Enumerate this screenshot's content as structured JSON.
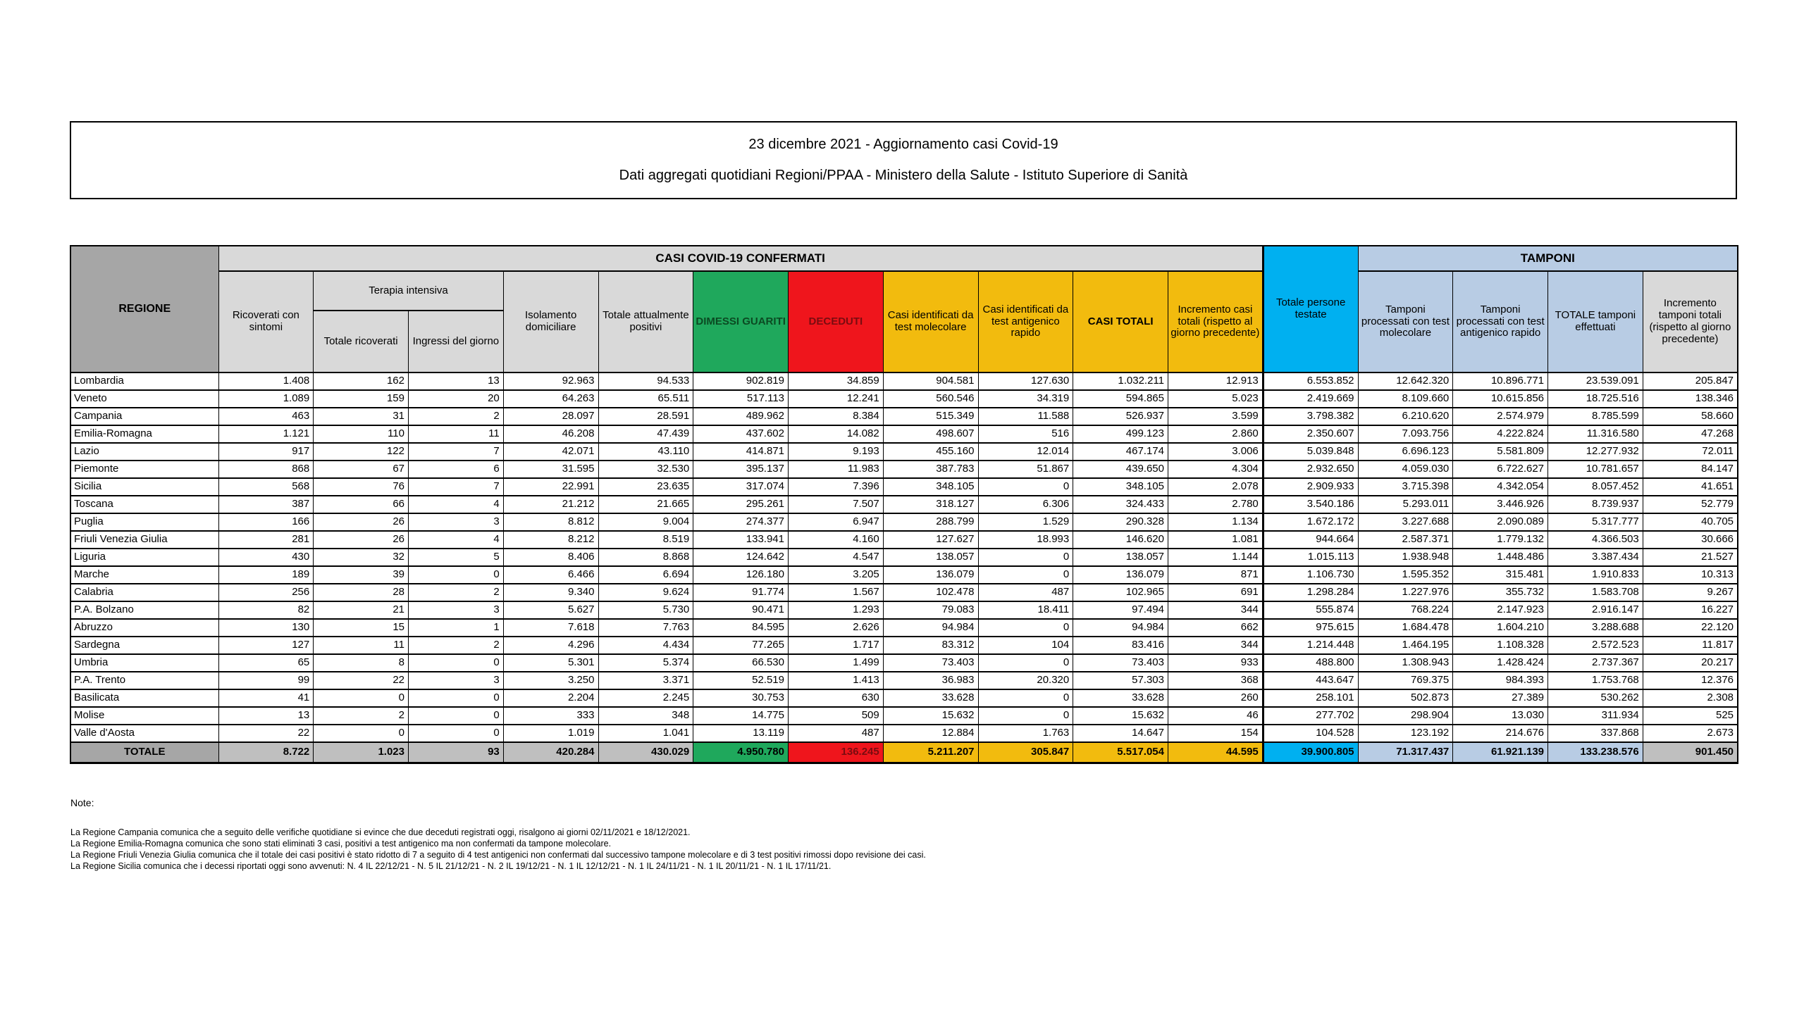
{
  "title": {
    "line1": "23 dicembre 2021 - Aggiornamento casi Covid-19",
    "line2": "Dati aggregati quotidiani Regioni/PPAA - Ministero della Salute - Istituto Superiore di Sanità"
  },
  "colors": {
    "gray-header": "#A6A6A6",
    "gray-light": "#D9D9D9",
    "gray-total": "#BFBFBF",
    "green": "#1FA85C",
    "green-text": "#0B4A22",
    "red": "#EF151C",
    "red-text": "#7A0C10",
    "gold": "#F2BB0E",
    "cyan": "#00B0F0",
    "blue-light": "#B8CCE4"
  },
  "table": {
    "headers": {
      "regione": "REGIONE",
      "casi_confermati": "CASI COVID-19 CONFERMATI",
      "tamponi": "TAMPONI",
      "ricoverati": "Ricoverati con sintomi",
      "terapia_intensiva": "Terapia intensiva",
      "totale_ricoverati": "Totale ricoverati",
      "ingressi": "Ingressi del giorno",
      "isolamento": "Isolamento domiciliare",
      "totale_positivi": "Totale attualmente positivi",
      "dimessi": "DIMESSI GUARITI",
      "deceduti": "DECEDUTI",
      "casi_molecolare": "Casi identificati da test molecolare",
      "casi_antigenico": "Casi identificati da test antigenico rapido",
      "casi_totali": "CASI TOTALI",
      "incremento_casi": "Incremento casi totali (rispetto al giorno precedente)",
      "totale_persone_testate": "Totale persone testate",
      "tamponi_molecolare": "Tamponi processati con test molecolare",
      "tamponi_antigenico": "Tamponi processati con test antigenico rapido",
      "totale_tamponi": "TOTALE tamponi effettuati",
      "incremento_tamponi": "Incremento tamponi totali (rispetto al giorno precedente)"
    },
    "rows": [
      {
        "regione": "Lombardia",
        "values": [
          "1.408",
          "162",
          "13",
          "92.963",
          "94.533",
          "902.819",
          "34.859",
          "904.581",
          "127.630",
          "1.032.211",
          "12.913",
          "6.553.852",
          "12.642.320",
          "10.896.771",
          "23.539.091",
          "205.847"
        ]
      },
      {
        "regione": "Veneto",
        "values": [
          "1.089",
          "159",
          "20",
          "64.263",
          "65.511",
          "517.113",
          "12.241",
          "560.546",
          "34.319",
          "594.865",
          "5.023",
          "2.419.669",
          "8.109.660",
          "10.615.856",
          "18.725.516",
          "138.346"
        ]
      },
      {
        "regione": "Campania",
        "values": [
          "463",
          "31",
          "2",
          "28.097",
          "28.591",
          "489.962",
          "8.384",
          "515.349",
          "11.588",
          "526.937",
          "3.599",
          "3.798.382",
          "6.210.620",
          "2.574.979",
          "8.785.599",
          "58.660"
        ]
      },
      {
        "regione": "Emilia-Romagna",
        "values": [
          "1.121",
          "110",
          "11",
          "46.208",
          "47.439",
          "437.602",
          "14.082",
          "498.607",
          "516",
          "499.123",
          "2.860",
          "2.350.607",
          "7.093.756",
          "4.222.824",
          "11.316.580",
          "47.268"
        ]
      },
      {
        "regione": "Lazio",
        "values": [
          "917",
          "122",
          "7",
          "42.071",
          "43.110",
          "414.871",
          "9.193",
          "455.160",
          "12.014",
          "467.174",
          "3.006",
          "5.039.848",
          "6.696.123",
          "5.581.809",
          "12.277.932",
          "72.011"
        ]
      },
      {
        "regione": "Piemonte",
        "values": [
          "868",
          "67",
          "6",
          "31.595",
          "32.530",
          "395.137",
          "11.983",
          "387.783",
          "51.867",
          "439.650",
          "4.304",
          "2.932.650",
          "4.059.030",
          "6.722.627",
          "10.781.657",
          "84.147"
        ]
      },
      {
        "regione": "Sicilia",
        "values": [
          "568",
          "76",
          "7",
          "22.991",
          "23.635",
          "317.074",
          "7.396",
          "348.105",
          "0",
          "348.105",
          "2.078",
          "2.909.933",
          "3.715.398",
          "4.342.054",
          "8.057.452",
          "41.651"
        ]
      },
      {
        "regione": "Toscana",
        "values": [
          "387",
          "66",
          "4",
          "21.212",
          "21.665",
          "295.261",
          "7.507",
          "318.127",
          "6.306",
          "324.433",
          "2.780",
          "3.540.186",
          "5.293.011",
          "3.446.926",
          "8.739.937",
          "52.779"
        ]
      },
      {
        "regione": "Puglia",
        "values": [
          "166",
          "26",
          "3",
          "8.812",
          "9.004",
          "274.377",
          "6.947",
          "288.799",
          "1.529",
          "290.328",
          "1.134",
          "1.672.172",
          "3.227.688",
          "2.090.089",
          "5.317.777",
          "40.705"
        ]
      },
      {
        "regione": "Friuli Venezia Giulia",
        "values": [
          "281",
          "26",
          "4",
          "8.212",
          "8.519",
          "133.941",
          "4.160",
          "127.627",
          "18.993",
          "146.620",
          "1.081",
          "944.664",
          "2.587.371",
          "1.779.132",
          "4.366.503",
          "30.666"
        ]
      },
      {
        "regione": "Liguria",
        "values": [
          "430",
          "32",
          "5",
          "8.406",
          "8.868",
          "124.642",
          "4.547",
          "138.057",
          "0",
          "138.057",
          "1.144",
          "1.015.113",
          "1.938.948",
          "1.448.486",
          "3.387.434",
          "21.527"
        ]
      },
      {
        "regione": "Marche",
        "values": [
          "189",
          "39",
          "0",
          "6.466",
          "6.694",
          "126.180",
          "3.205",
          "136.079",
          "0",
          "136.079",
          "871",
          "1.106.730",
          "1.595.352",
          "315.481",
          "1.910.833",
          "10.313"
        ]
      },
      {
        "regione": "Calabria",
        "values": [
          "256",
          "28",
          "2",
          "9.340",
          "9.624",
          "91.774",
          "1.567",
          "102.478",
          "487",
          "102.965",
          "691",
          "1.298.284",
          "1.227.976",
          "355.732",
          "1.583.708",
          "9.267"
        ]
      },
      {
        "regione": "P.A. Bolzano",
        "values": [
          "82",
          "21",
          "3",
          "5.627",
          "5.730",
          "90.471",
          "1.293",
          "79.083",
          "18.411",
          "97.494",
          "344",
          "555.874",
          "768.224",
          "2.147.923",
          "2.916.147",
          "16.227"
        ]
      },
      {
        "regione": "Abruzzo",
        "values": [
          "130",
          "15",
          "1",
          "7.618",
          "7.763",
          "84.595",
          "2.626",
          "94.984",
          "0",
          "94.984",
          "662",
          "975.615",
          "1.684.478",
          "1.604.210",
          "3.288.688",
          "22.120"
        ]
      },
      {
        "regione": "Sardegna",
        "values": [
          "127",
          "11",
          "2",
          "4.296",
          "4.434",
          "77.265",
          "1.717",
          "83.312",
          "104",
          "83.416",
          "344",
          "1.214.448",
          "1.464.195",
          "1.108.328",
          "2.572.523",
          "11.817"
        ]
      },
      {
        "regione": "Umbria",
        "values": [
          "65",
          "8",
          "0",
          "5.301",
          "5.374",
          "66.530",
          "1.499",
          "73.403",
          "0",
          "73.403",
          "933",
          "488.800",
          "1.308.943",
          "1.428.424",
          "2.737.367",
          "20.217"
        ]
      },
      {
        "regione": "P.A. Trento",
        "values": [
          "99",
          "22",
          "3",
          "3.250",
          "3.371",
          "52.519",
          "1.413",
          "36.983",
          "20.320",
          "57.303",
          "368",
          "443.647",
          "769.375",
          "984.393",
          "1.753.768",
          "12.376"
        ]
      },
      {
        "regione": "Basilicata",
        "values": [
          "41",
          "0",
          "0",
          "2.204",
          "2.245",
          "30.753",
          "630",
          "33.628",
          "0",
          "33.628",
          "260",
          "258.101",
          "502.873",
          "27.389",
          "530.262",
          "2.308"
        ]
      },
      {
        "regione": "Molise",
        "values": [
          "13",
          "2",
          "0",
          "333",
          "348",
          "14.775",
          "509",
          "15.632",
          "0",
          "15.632",
          "46",
          "277.702",
          "298.904",
          "13.030",
          "311.934",
          "525"
        ]
      },
      {
        "regione": "Valle d'Aosta",
        "values": [
          "22",
          "0",
          "0",
          "1.019",
          "1.041",
          "13.119",
          "487",
          "12.884",
          "1.763",
          "14.647",
          "154",
          "104.528",
          "123.192",
          "214.676",
          "337.868",
          "2.673"
        ]
      }
    ],
    "totale": {
      "label": "TOTALE",
      "values": [
        "8.722",
        "1.023",
        "93",
        "420.284",
        "430.029",
        "4.950.780",
        "136.245",
        "5.211.207",
        "305.847",
        "5.517.054",
        "44.595",
        "39.900.805",
        "71.317.437",
        "61.921.139",
        "133.238.576",
        "901.450"
      ]
    }
  },
  "notes": {
    "heading": "Note:",
    "items": [
      "La Regione Campania comunica che a seguito delle verifiche quotidiane si evince che due deceduti registrati oggi, risalgono ai giorni 02/11/2021 e 18/12/2021.",
      "La Regione Emilia-Romagna  comunica che sono stati eliminati 3 casi, positivi a test antigenico ma non confermati da tampone molecolare.",
      "La Regione Friuli Venezia Giulia comunica che il totale dei casi positivi è stato ridotto di 7 a seguito di 4 test antigenici non confermati dal successivo tampone molecolare e di 3 test positivi rimossi dopo revisione dei casi.",
      "La Regione Sicilia comunica che i decessi riportati oggi sono avvenuti: N. 4 IL 22/12/21 - N. 5 IL 21/12/21 - N. 2 IL 19/12/21 - N. 1 IL 12/12/21 - N. 1 IL 24/11/21 - N. 1 IL 20/11/21 - N. 1 IL 17/11/21."
    ]
  }
}
